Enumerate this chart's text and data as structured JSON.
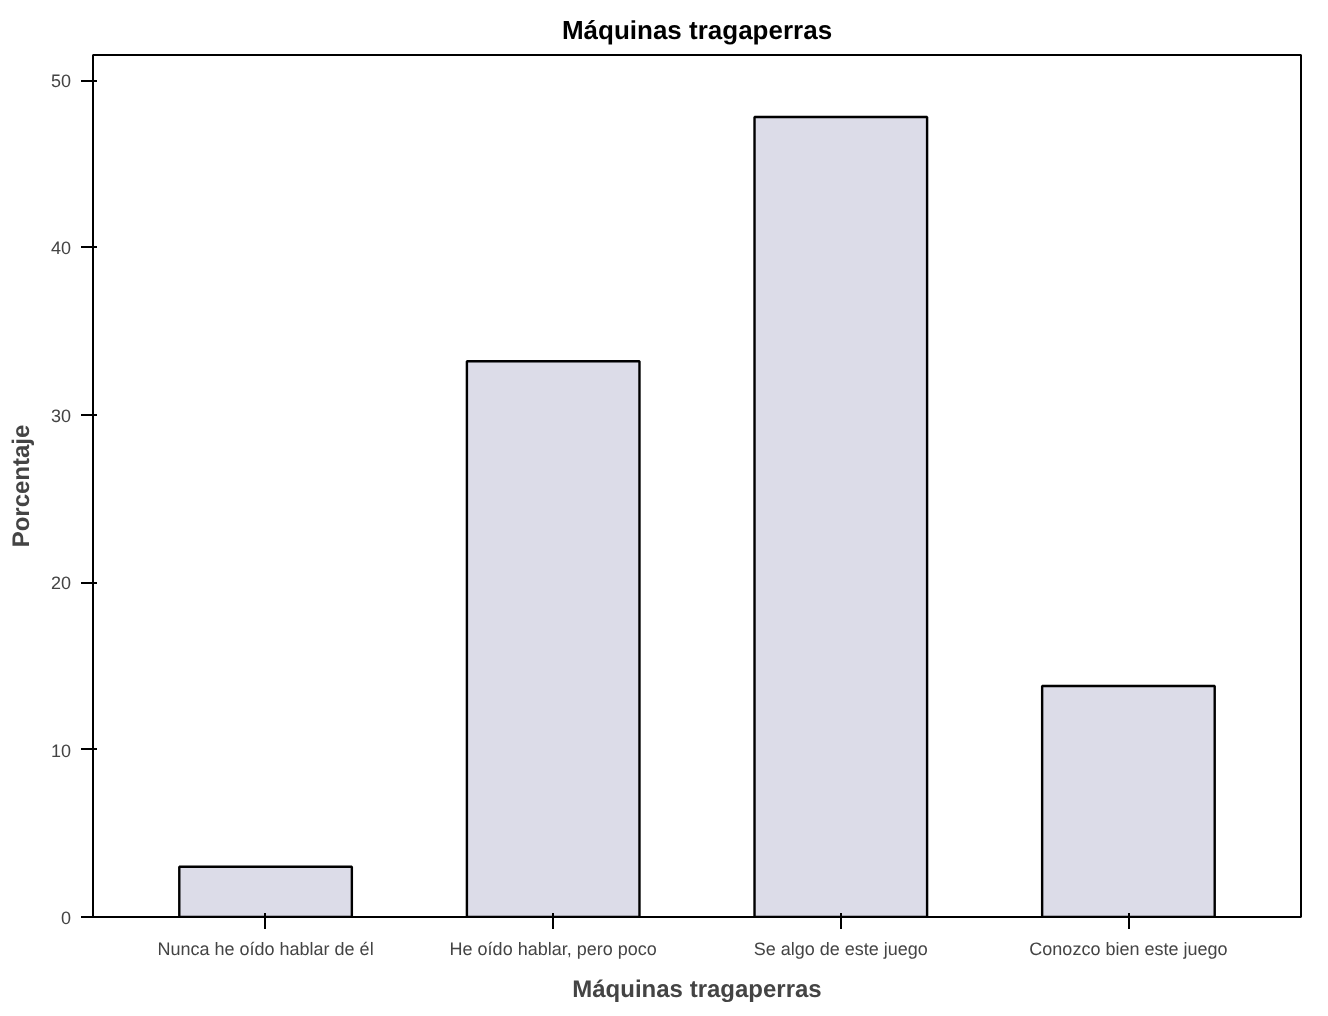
{
  "chart_data": {
    "type": "bar",
    "title": "Máquinas tragaperras",
    "xlabel": "Máquinas tragaperras",
    "ylabel": "Porcentaje",
    "categories": [
      "Nunca he oído hablar de él",
      "He oído hablar, pero poco",
      "Se algo de este juego",
      "Conozco bien este juego"
    ],
    "values": [
      3.0,
      33.2,
      47.8,
      13.8
    ],
    "color": "#dcdce8",
    "ylim": [
      0,
      51.5
    ],
    "yticks": [
      0,
      10,
      20,
      30,
      40,
      50
    ],
    "grid": false
  }
}
